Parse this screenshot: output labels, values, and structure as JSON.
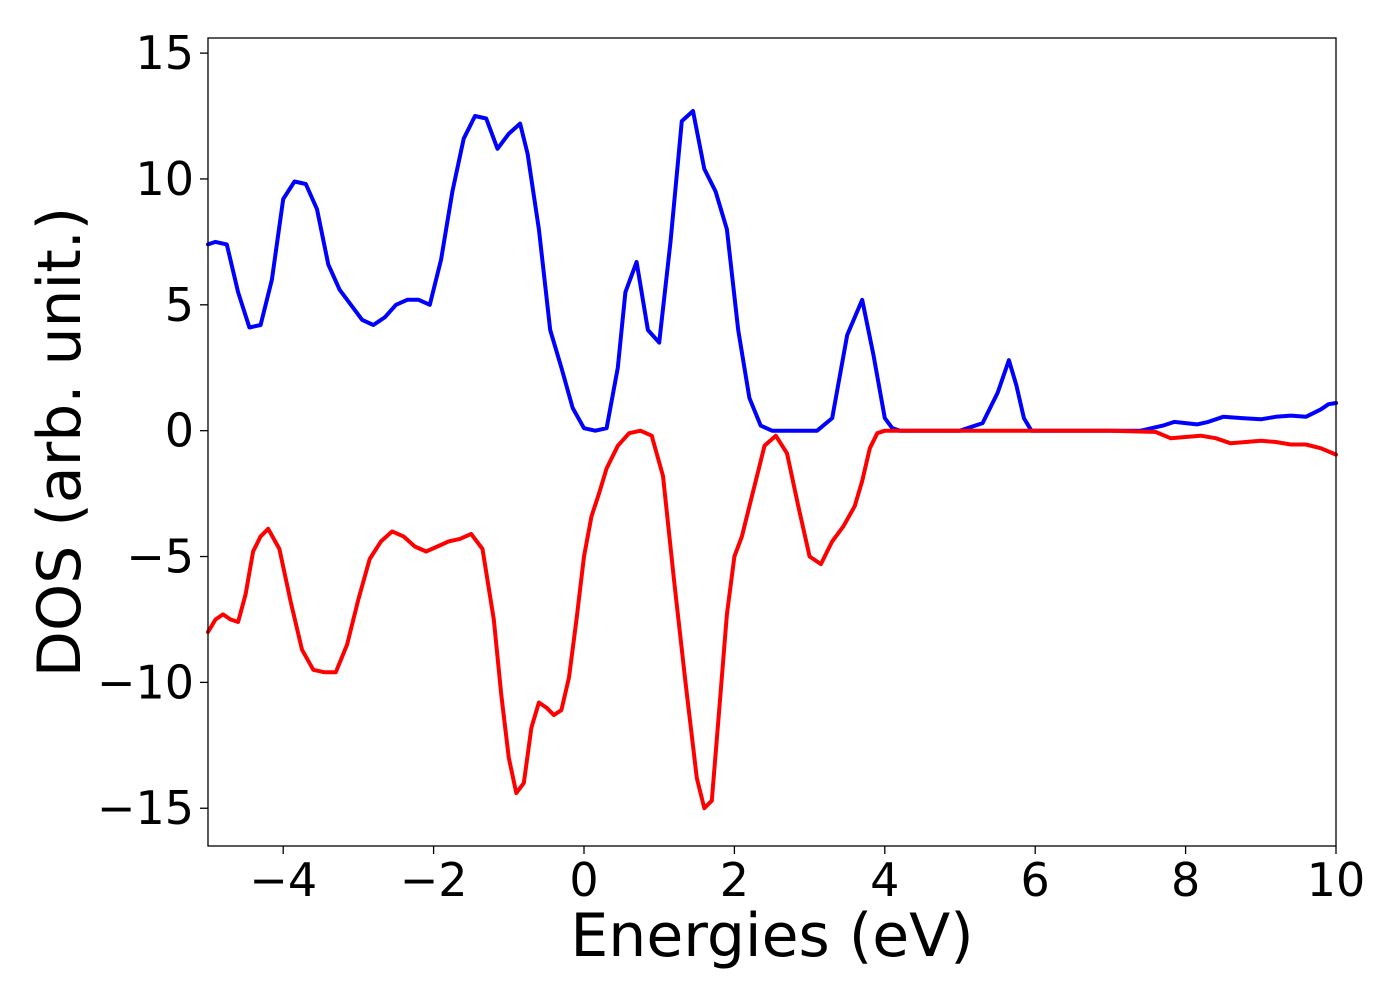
{
  "chart_data": {
    "type": "line",
    "xlabel": "Energies (eV)",
    "ylabel": "DOS (arb. unit.)",
    "xlim": [
      -5,
      10
    ],
    "ylim": [
      -16.5,
      15.6
    ],
    "xticks": [
      -4,
      -2,
      0,
      2,
      4,
      6,
      8,
      10
    ],
    "xtick_labels": [
      "−4",
      "−2",
      "0",
      "2",
      "4",
      "6",
      "8",
      "10"
    ],
    "yticks": [
      15,
      10,
      5,
      0,
      -5,
      -10,
      -15
    ],
    "ytick_labels": [
      "15",
      "10",
      "5",
      "0",
      "−5",
      "−10",
      "−15"
    ],
    "grid": false,
    "series": [
      {
        "color": "#0000ff",
        "x": [
          -5.0,
          -4.9,
          -4.75,
          -4.6,
          -4.45,
          -4.3,
          -4.15,
          -4.0,
          -3.85,
          -3.7,
          -3.55,
          -3.4,
          -3.25,
          -3.1,
          -2.95,
          -2.8,
          -2.65,
          -2.5,
          -2.35,
          -2.2,
          -2.05,
          -1.9,
          -1.75,
          -1.6,
          -1.45,
          -1.3,
          -1.15,
          -1.0,
          -0.85,
          -0.75,
          -0.6,
          -0.45,
          -0.3,
          -0.15,
          0.0,
          0.15,
          0.3,
          0.45,
          0.55,
          0.7,
          0.85,
          1.0,
          1.15,
          1.3,
          1.45,
          1.6,
          1.75,
          1.9,
          2.05,
          2.2,
          2.35,
          2.5,
          2.65,
          2.8,
          2.95,
          3.1,
          3.3,
          3.5,
          3.7,
          3.85,
          4.0,
          4.1,
          4.2,
          4.35,
          4.5,
          4.7,
          5.0,
          5.3,
          5.5,
          5.65,
          5.75,
          5.85,
          5.95,
          6.1,
          6.3,
          6.6,
          7.0,
          7.4,
          7.7,
          7.85,
          8.0,
          8.15,
          8.3,
          8.5,
          8.75,
          9.0,
          9.2,
          9.4,
          9.6,
          9.8,
          9.9,
          10.0
        ],
        "y": [
          7.4,
          7.5,
          7.4,
          5.5,
          4.1,
          4.2,
          6.0,
          9.2,
          9.9,
          9.8,
          8.8,
          6.6,
          5.6,
          5.0,
          4.4,
          4.2,
          4.5,
          5.0,
          5.2,
          5.2,
          5.0,
          6.8,
          9.5,
          11.6,
          12.5,
          12.4,
          11.2,
          11.8,
          12.2,
          11.0,
          8.0,
          4.0,
          2.5,
          0.9,
          0.1,
          0.0,
          0.1,
          2.5,
          5.5,
          6.7,
          4.0,
          3.5,
          7.5,
          12.3,
          12.7,
          10.4,
          9.5,
          8.0,
          4.0,
          1.3,
          0.2,
          0.0,
          0.0,
          0.0,
          0.0,
          0.0,
          0.5,
          3.8,
          5.2,
          3.0,
          0.5,
          0.1,
          0.0,
          0.0,
          0.0,
          0.0,
          0.0,
          0.3,
          1.5,
          2.8,
          1.8,
          0.5,
          0.0,
          0.0,
          0.0,
          0.0,
          0.0,
          0.0,
          0.2,
          0.35,
          0.3,
          0.25,
          0.35,
          0.55,
          0.5,
          0.45,
          0.55,
          0.6,
          0.55,
          0.85,
          1.05,
          1.1
        ]
      },
      {
        "color": "#ff0000",
        "x": [
          -5.0,
          -4.9,
          -4.8,
          -4.7,
          -4.6,
          -4.5,
          -4.4,
          -4.3,
          -4.2,
          -4.05,
          -3.9,
          -3.75,
          -3.6,
          -3.45,
          -3.3,
          -3.15,
          -3.0,
          -2.85,
          -2.7,
          -2.55,
          -2.4,
          -2.25,
          -2.1,
          -1.95,
          -1.8,
          -1.65,
          -1.5,
          -1.35,
          -1.2,
          -1.1,
          -1.0,
          -0.9,
          -0.8,
          -0.7,
          -0.6,
          -0.5,
          -0.4,
          -0.3,
          -0.2,
          -0.1,
          0.0,
          0.1,
          0.2,
          0.3,
          0.45,
          0.6,
          0.75,
          0.9,
          1.05,
          1.2,
          1.35,
          1.5,
          1.6,
          1.7,
          1.8,
          1.9,
          2.0,
          2.1,
          2.2,
          2.3,
          2.4,
          2.55,
          2.7,
          2.85,
          3.0,
          3.15,
          3.3,
          3.45,
          3.6,
          3.7,
          3.8,
          3.9,
          4.0,
          4.1,
          4.2,
          4.35,
          4.5,
          5.0,
          6.0,
          7.0,
          7.6,
          7.8,
          8.0,
          8.2,
          8.4,
          8.6,
          8.8,
          9.0,
          9.2,
          9.4,
          9.6,
          9.8,
          10.0
        ],
        "y": [
          -8.0,
          -7.5,
          -7.3,
          -7.5,
          -7.6,
          -6.5,
          -4.8,
          -4.2,
          -3.9,
          -4.7,
          -6.8,
          -8.7,
          -9.5,
          -9.6,
          -9.6,
          -8.5,
          -6.7,
          -5.1,
          -4.4,
          -4.0,
          -4.2,
          -4.6,
          -4.8,
          -4.6,
          -4.4,
          -4.3,
          -4.1,
          -4.7,
          -7.5,
          -10.5,
          -13.0,
          -14.4,
          -14.0,
          -11.8,
          -10.8,
          -11.0,
          -11.3,
          -11.1,
          -9.8,
          -7.5,
          -5.0,
          -3.4,
          -2.5,
          -1.5,
          -0.6,
          -0.1,
          0.0,
          -0.2,
          -1.8,
          -6.0,
          -10.0,
          -13.8,
          -15.0,
          -14.7,
          -11.0,
          -7.3,
          -5.0,
          -4.2,
          -3.0,
          -1.8,
          -0.6,
          -0.2,
          -0.9,
          -3.0,
          -5.0,
          -5.3,
          -4.4,
          -3.8,
          -3.0,
          -2.0,
          -0.7,
          -0.1,
          0.0,
          0.0,
          0.0,
          0.0,
          0.0,
          0.0,
          0.0,
          0.0,
          -0.05,
          -0.3,
          -0.25,
          -0.2,
          -0.3,
          -0.5,
          -0.45,
          -0.4,
          -0.45,
          -0.55,
          -0.55,
          -0.7,
          -0.95
        ]
      }
    ]
  }
}
